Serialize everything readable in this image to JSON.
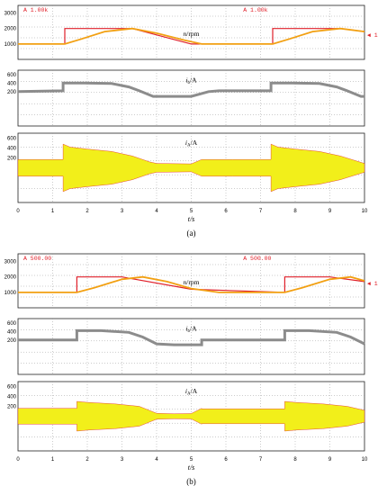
{
  "figure": {
    "colors": {
      "speed_ref": "#e0202a",
      "speed_actual": "#f2a012",
      "dc_current": "#8c8c8c",
      "phase_current": "#f2ef1a",
      "phase_edge": "#e0202a",
      "frame": "#222222",
      "grid": "#9a9a9a"
    }
  },
  "chart_data": [
    {
      "subfigure": "(a)",
      "type": "line",
      "xlabel": "t/s",
      "xlim": [
        0,
        10
      ],
      "x_ticks": [
        "0",
        "1",
        "2",
        "3",
        "4",
        "5",
        "6",
        "7",
        "8",
        "9",
        "10"
      ],
      "panels": [
        {
          "label_var": "n",
          "label_unit": "/rpm",
          "y_ticks": [
            "3000",
            "2000",
            "1000"
          ],
          "marker_left": "A 1.00k",
          "marker_right": "A 1.00k",
          "side_marker": "1",
          "series": [
            {
              "role": "reference",
              "x": [
                0,
                1.35,
                1.35,
                2.0,
                3.3,
                5.0,
                7.35,
                7.35,
                8.0,
                9.3,
                10.0
              ],
              "y": [
                1000,
                1000,
                2000,
                2000,
                2000,
                1000,
                1000,
                2000,
                2000,
                2000,
                1800
              ]
            },
            {
              "role": "actual",
              "x": [
                0,
                1.35,
                1.8,
                2.5,
                3.3,
                4.0,
                4.8,
                5.3,
                5.6,
                7.35,
                7.8,
                8.5,
                9.3,
                10.0
              ],
              "y": [
                1000,
                1000,
                1300,
                1800,
                2000,
                1700,
                1250,
                1000,
                1000,
                1000,
                1300,
                1800,
                2000,
                1800
              ]
            }
          ]
        },
        {
          "label_var": "i",
          "label_sub": "b",
          "label_unit": "/A",
          "y_ticks": [
            "600",
            "400",
            "200"
          ],
          "series": [
            {
              "role": "envelope",
              "x": [
                0,
                1.3,
                1.3,
                1.9,
                2.7,
                3.2,
                3.5,
                3.9,
                4.5,
                5.0,
                5.5,
                5.8,
                7.3,
                7.3,
                7.9,
                8.7,
                9.2,
                9.5,
                9.9,
                10.0
              ],
              "y": [
                200,
                220,
                400,
                400,
                390,
                310,
                220,
                90,
                90,
                90,
                200,
                220,
                220,
                400,
                400,
                390,
                310,
                220,
                90,
                90
              ]
            }
          ]
        },
        {
          "label_var": "i",
          "label_sub": "A",
          "label_unit": "/A",
          "y_ticks": [
            "600",
            "400",
            "200"
          ],
          "series": [
            {
              "role": "amplitude",
              "x": [
                0,
                1.3,
                1.3,
                1.5,
                2.0,
                2.7,
                3.3,
                3.8,
                4.0,
                5.0,
                5.3,
                6.2,
                7.3,
                7.3,
                7.5,
                8.0,
                8.7,
                9.3,
                9.9,
                10.0
              ],
              "y": [
                170,
                170,
                480,
                420,
                380,
                330,
                240,
                120,
                90,
                80,
                170,
                170,
                170,
                480,
                420,
                380,
                330,
                240,
                110,
                90
              ]
            }
          ]
        }
      ]
    },
    {
      "subfigure": "(b)",
      "type": "line",
      "xlabel": "t/s",
      "xlim": [
        0,
        10
      ],
      "x_ticks": [
        "0",
        "1",
        "2",
        "3",
        "4",
        "5",
        "6",
        "7",
        "8",
        "9",
        "10"
      ],
      "panels": [
        {
          "label_var": "n",
          "label_unit": "/rpm",
          "y_ticks": [
            "3000",
            "2000",
            "1000"
          ],
          "marker_left": "A 500.00",
          "marker_right": "A 500.00",
          "side_marker": "1",
          "series": [
            {
              "role": "reference",
              "x": [
                0,
                1.7,
                1.7,
                3.0,
                5.0,
                7.7,
                7.7,
                9.0,
                10.0
              ],
              "y": [
                1000,
                1000,
                2000,
                2000,
                1200,
                1000,
                2000,
                2000,
                1700
              ]
            },
            {
              "role": "actual",
              "x": [
                0,
                1.7,
                2.2,
                3.0,
                3.6,
                4.3,
                5.0,
                5.8,
                7.7,
                8.2,
                9.0,
                9.6,
                10.0
              ],
              "y": [
                1000,
                1000,
                1300,
                1850,
                2000,
                1700,
                1250,
                1000,
                1000,
                1300,
                1850,
                2000,
                1750
              ]
            }
          ]
        },
        {
          "label_var": "i",
          "label_sub": "b",
          "label_unit": "/A",
          "y_ticks": [
            "600",
            "400",
            "200"
          ],
          "series": [
            {
              "role": "envelope",
              "x": [
                0,
                1.7,
                1.7,
                2.4,
                3.2,
                3.6,
                4.0,
                4.5,
                5.0,
                5.3,
                5.3,
                7.7,
                7.7,
                8.4,
                9.2,
                9.6,
                10.0
              ],
              "y": [
                200,
                200,
                420,
                420,
                380,
                270,
                110,
                90,
                90,
                90,
                200,
                200,
                420,
                420,
                380,
                270,
                110
              ]
            }
          ]
        },
        {
          "label_var": "i",
          "label_sub": "A",
          "label_unit": "/A",
          "y_ticks": [
            "600",
            "400",
            "200"
          ],
          "series": [
            {
              "role": "amplitude",
              "x": [
                0,
                1.7,
                1.7,
                2.0,
                2.8,
                3.5,
                4.0,
                4.5,
                5.0,
                5.3,
                5.3,
                7.7,
                7.7,
                8.0,
                8.8,
                9.5,
                10.0
              ],
              "y": [
                160,
                160,
                300,
                280,
                250,
                200,
                60,
                50,
                55,
                160,
                150,
                150,
                300,
                280,
                250,
                200,
                120
              ]
            }
          ]
        }
      ]
    }
  ]
}
